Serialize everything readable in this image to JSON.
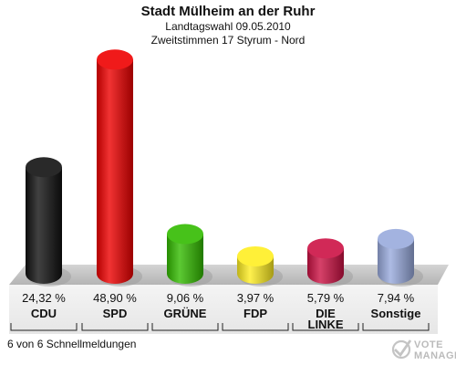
{
  "title": "Stadt Mülheim an der Ruhr",
  "subtitle1": "Landtagswahl 09.05.2010",
  "subtitle2": "Zweitstimmen 17 Styrum - Nord",
  "footnote": "6 von 6 Schnellmeldungen",
  "logo_text": "VOTE MANAGER",
  "chart_data": {
    "type": "bar",
    "title": "Stadt Mülheim an der Ruhr",
    "categories": [
      "CDU",
      "SPD",
      "GRÜNE",
      "FDP",
      "DIE LINKE",
      "Sonstige"
    ],
    "category_lines": [
      [
        "CDU"
      ],
      [
        "SPD"
      ],
      [
        "GRÜNE"
      ],
      [
        "FDP"
      ],
      [
        "DIE",
        "LINKE"
      ],
      [
        "Sonstige"
      ]
    ],
    "values": [
      24.32,
      48.9,
      9.06,
      3.97,
      5.79,
      7.94
    ],
    "value_labels": [
      "24,32 %",
      "48,90 %",
      "9,06 %",
      "3,97 %",
      "5,79 %",
      "7,94 %"
    ],
    "colors": [
      "#111111",
      "#ee0000",
      "#33bb00",
      "#ffee22",
      "#cc1144",
      "#99aadd"
    ],
    "ylim": [
      0,
      50
    ],
    "grid": false,
    "legend": "none"
  }
}
